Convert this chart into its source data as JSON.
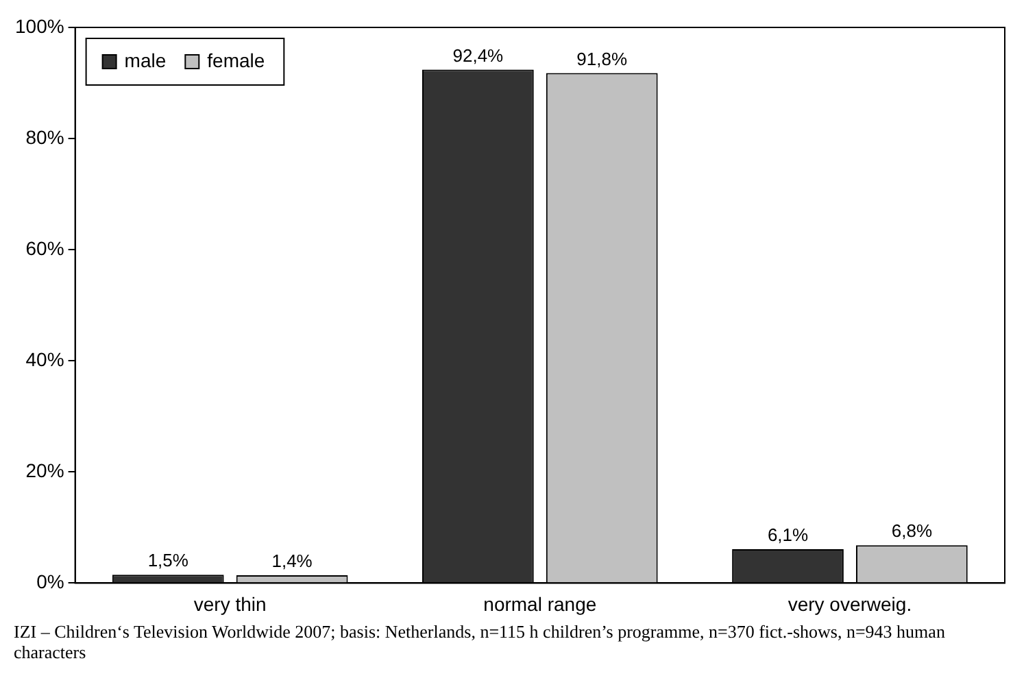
{
  "chart_data": {
    "type": "bar",
    "categories": [
      "very thin",
      "normal range",
      "very overweig."
    ],
    "series": [
      {
        "name": "male",
        "color": "#333333",
        "values": [
          1.5,
          92.4,
          6.1
        ],
        "value_labels": [
          "1,5%",
          "92,4%",
          "6,1%"
        ]
      },
      {
        "name": "female",
        "color": "#c0c0c0",
        "values": [
          1.4,
          91.8,
          6.8
        ],
        "value_labels": [
          "1,4%",
          "91,8%",
          "6,8%"
        ]
      }
    ],
    "ylim": [
      0,
      100
    ],
    "yticks": [
      {
        "value": 0,
        "label": "0%"
      },
      {
        "value": 20,
        "label": "20%"
      },
      {
        "value": 40,
        "label": "40%"
      },
      {
        "value": 60,
        "label": "60%"
      },
      {
        "value": 80,
        "label": "80%"
      },
      {
        "value": 100,
        "label": "100%"
      }
    ],
    "grid": false,
    "legend": "top left",
    "annotations": [
      "IZI – Children‘s Television Worldwide 2007; basis: Netherlands, n=115 h children’s programme, n=370 fict.-shows, n=943 human characters"
    ]
  }
}
